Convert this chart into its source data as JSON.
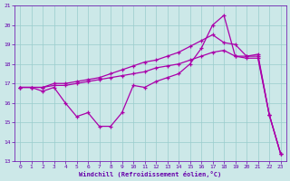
{
  "xlabel": "Windchill (Refroidissement éolien,°C)",
  "background_color": "#cce8e8",
  "grid_color": "#99cccc",
  "line_color": "#aa00aa",
  "spine_color": "#6600aa",
  "tick_color": "#6600aa",
  "xlim": [
    -0.5,
    23.5
  ],
  "ylim": [
    13,
    21
  ],
  "yticks": [
    13,
    14,
    15,
    16,
    17,
    18,
    19,
    20,
    21
  ],
  "xticks": [
    0,
    1,
    2,
    3,
    4,
    5,
    6,
    7,
    8,
    9,
    10,
    11,
    12,
    13,
    14,
    15,
    16,
    17,
    18,
    19,
    20,
    21,
    22,
    23
  ],
  "series1_x": [
    0,
    1,
    2,
    3,
    4,
    5,
    6,
    7,
    8,
    9,
    10,
    11,
    12,
    13,
    14,
    15,
    16,
    17,
    18,
    19,
    20,
    21,
    22,
    23
  ],
  "series1_y": [
    16.8,
    16.8,
    16.6,
    16.8,
    16.0,
    15.3,
    15.5,
    14.8,
    14.8,
    15.5,
    16.9,
    16.8,
    17.1,
    17.3,
    17.5,
    18.0,
    18.8,
    20.0,
    20.5,
    18.4,
    18.4,
    18.5,
    15.4,
    13.4
  ],
  "series2_x": [
    0,
    1,
    2,
    3,
    4,
    5,
    6,
    7,
    8,
    9,
    10,
    11,
    12,
    13,
    14,
    15,
    16,
    17,
    18,
    19,
    20,
    21,
    22,
    23
  ],
  "series2_y": [
    16.8,
    16.8,
    16.8,
    16.9,
    16.9,
    17.0,
    17.1,
    17.2,
    17.3,
    17.4,
    17.5,
    17.6,
    17.8,
    17.9,
    18.0,
    18.2,
    18.4,
    18.6,
    18.7,
    18.4,
    18.3,
    18.3,
    15.4,
    13.4
  ],
  "series3_x": [
    0,
    1,
    2,
    3,
    4,
    5,
    6,
    7,
    8,
    9,
    10,
    11,
    12,
    13,
    14,
    15,
    16,
    17,
    18,
    19,
    20,
    21,
    22,
    23
  ],
  "series3_y": [
    16.8,
    16.8,
    16.8,
    17.0,
    17.0,
    17.1,
    17.2,
    17.3,
    17.5,
    17.7,
    17.9,
    18.1,
    18.2,
    18.4,
    18.6,
    18.9,
    19.2,
    19.5,
    19.1,
    19.0,
    18.4,
    18.4,
    15.4,
    13.4
  ]
}
